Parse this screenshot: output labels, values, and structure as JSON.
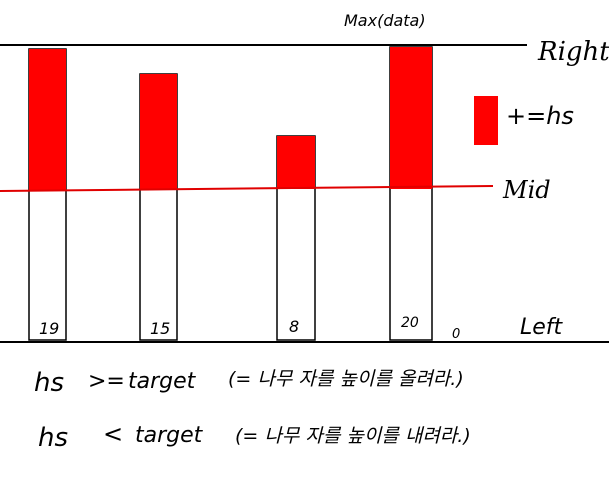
{
  "labels": {
    "max": "Max(data)",
    "right": "Right",
    "mid": "Mid",
    "left": "Left",
    "legend": "+=hs"
  },
  "bars": [
    {
      "name": "bar-1",
      "label": "19"
    },
    {
      "name": "bar-2",
      "label": "15"
    },
    {
      "name": "bar-3",
      "label": "8"
    },
    {
      "name": "bar-4",
      "label": "20"
    }
  ],
  "zero_label": "0",
  "rules": [
    {
      "hs": "hs",
      "op": ">=",
      "target": "target",
      "note": "(= 나무 자를 높이를 올려라.)"
    },
    {
      "hs": "hs",
      "op": "<",
      "target": "target",
      "note": "(= 나무 자를 높이를 내려라.)"
    }
  ],
  "colors": {
    "cut": "#ff0000",
    "outline": "#000000",
    "mid_line": "#e00000"
  }
}
